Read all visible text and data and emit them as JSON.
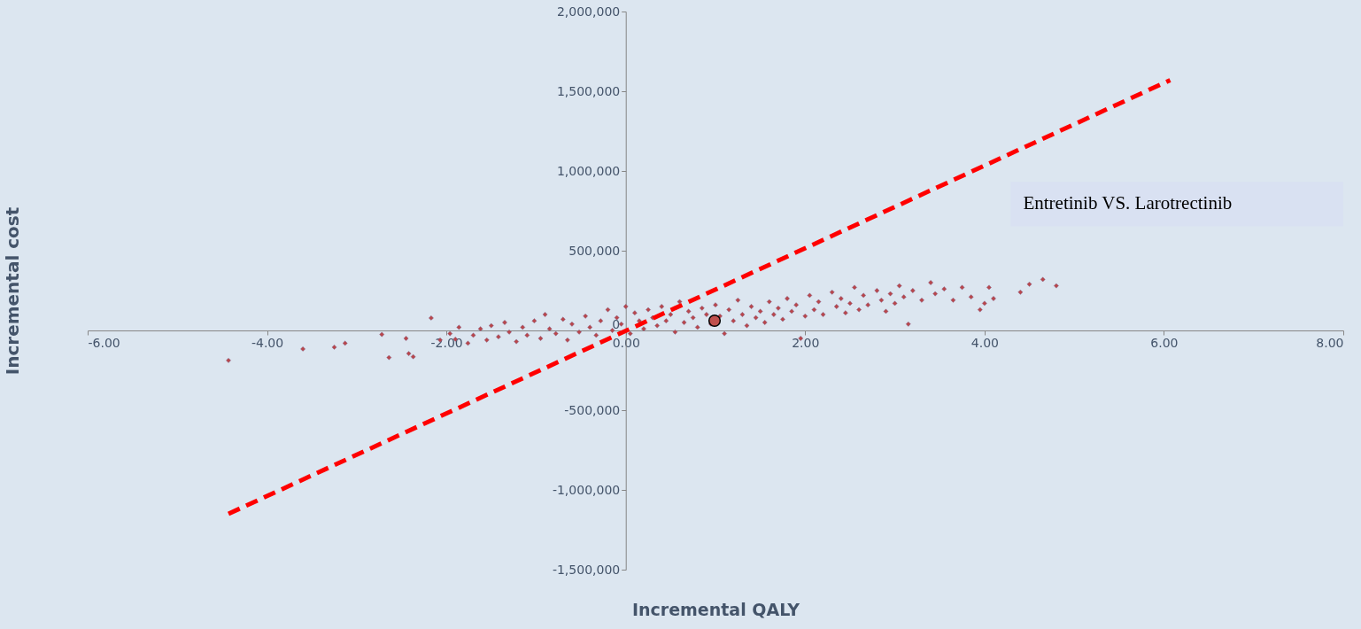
{
  "chart_data": {
    "type": "scatter",
    "xlabel": "Incremental QALY",
    "ylabel": "Incremental cost",
    "annotations": [
      "Entretinib VS. Larotrectinib"
    ],
    "xlim": [
      -6,
      8
    ],
    "ylim": [
      -1500000,
      2000000
    ],
    "xticks": [
      {
        "value": -6,
        "label": "-6.00"
      },
      {
        "value": -4,
        "label": "-4.00"
      },
      {
        "value": -2,
        "label": "-2.00"
      },
      {
        "value": 0,
        "label": "0.00"
      },
      {
        "value": 2,
        "label": "2.00"
      },
      {
        "value": 4,
        "label": "4.00"
      },
      {
        "value": 6,
        "label": "6.00"
      },
      {
        "value": 8,
        "label": "8.00"
      }
    ],
    "yticks": [
      {
        "value": -1500000,
        "label": "-1,500,000"
      },
      {
        "value": -1000000,
        "label": "-1,000,000"
      },
      {
        "value": -500000,
        "label": "-500,000"
      },
      {
        "value": 0,
        "label": "0"
      },
      {
        "value": 500000,
        "label": "500,000"
      },
      {
        "value": 1000000,
        "label": "1,000,000"
      },
      {
        "value": 1500000,
        "label": "1,500,000"
      },
      {
        "value": 2000000,
        "label": "2,000,000"
      }
    ],
    "grid": false,
    "series": [
      {
        "marker": "diamond",
        "color": "#b8474b",
        "x": [
          -4.43,
          -3.6,
          -3.25,
          -3.13,
          -2.72,
          -2.64,
          -2.45,
          -2.42,
          -2.37,
          -2.17,
          -2.07,
          -1.96,
          -1.9,
          -1.86,
          -1.76,
          -1.7,
          -1.62,
          -1.55,
          -1.5,
          -1.42,
          -1.35,
          -1.3,
          -1.22,
          -1.15,
          -1.1,
          -1.02,
          -0.95,
          -0.9,
          -0.85,
          -0.78,
          -0.7,
          -0.65,
          -0.6,
          -0.52,
          -0.45,
          -0.4,
          -0.33,
          -0.28,
          -0.2,
          -0.15,
          -0.1,
          -0.05,
          0.0,
          0.05,
          0.1,
          0.15,
          0.2,
          0.25,
          0.3,
          0.35,
          0.4,
          0.45,
          0.5,
          0.55,
          0.6,
          0.65,
          0.7,
          0.75,
          0.8,
          0.85,
          0.9,
          0.95,
          1.0,
          1.05,
          1.1,
          1.15,
          1.2,
          1.25,
          1.3,
          1.35,
          1.4,
          1.45,
          1.5,
          1.55,
          1.6,
          1.65,
          1.7,
          1.75,
          1.8,
          1.85,
          1.9,
          1.95,
          2.0,
          2.05,
          2.1,
          2.15,
          2.2,
          2.3,
          2.35,
          2.4,
          2.45,
          2.5,
          2.55,
          2.6,
          2.65,
          2.7,
          2.8,
          2.85,
          2.9,
          2.95,
          3.0,
          3.05,
          3.1,
          3.15,
          3.2,
          3.3,
          3.4,
          3.45,
          3.55,
          3.65,
          3.75,
          3.85,
          3.95,
          4.0,
          4.05,
          4.1,
          4.4,
          4.5,
          4.65,
          4.8
        ],
        "values": [
          -188000,
          -116000,
          -105000,
          -80000,
          -25000,
          -170000,
          -50000,
          -145000,
          -165000,
          78000,
          -60000,
          -20000,
          -55000,
          20000,
          -80000,
          -30000,
          10000,
          -60000,
          30000,
          -40000,
          50000,
          -10000,
          -70000,
          20000,
          -30000,
          60000,
          -50000,
          100000,
          10000,
          -20000,
          70000,
          -60000,
          40000,
          -10000,
          90000,
          20000,
          -30000,
          60000,
          130000,
          0,
          80000,
          40000,
          150000,
          -20000,
          110000,
          60000,
          10000,
          130000,
          80000,
          30000,
          150000,
          60000,
          100000,
          -10000,
          180000,
          50000,
          120000,
          80000,
          20000,
          140000,
          100000,
          40000,
          160000,
          90000,
          -20000,
          130000,
          60000,
          190000,
          100000,
          30000,
          150000,
          80000,
          120000,
          50000,
          180000,
          100000,
          140000,
          70000,
          200000,
          120000,
          160000,
          -50000,
          90000,
          220000,
          130000,
          180000,
          100000,
          240000,
          150000,
          200000,
          110000,
          170000,
          270000,
          130000,
          220000,
          160000,
          250000,
          190000,
          120000,
          230000,
          170000,
          280000,
          210000,
          40000,
          250000,
          190000,
          300000,
          230000,
          260000,
          190000,
          270000,
          210000,
          130000,
          170000,
          270000,
          200000,
          240000,
          290000,
          320000,
          280000
        ]
      },
      {
        "type": "line",
        "line_style": "dashed",
        "color": "#ff0000",
        "x": [
          -4.43,
          6.07
        ],
        "values": [
          -1150000,
          1570000
        ]
      },
      {
        "marker": "circle",
        "color": "#c0504d",
        "x": [
          0.99
        ],
        "values": [
          61000
        ]
      }
    ]
  }
}
